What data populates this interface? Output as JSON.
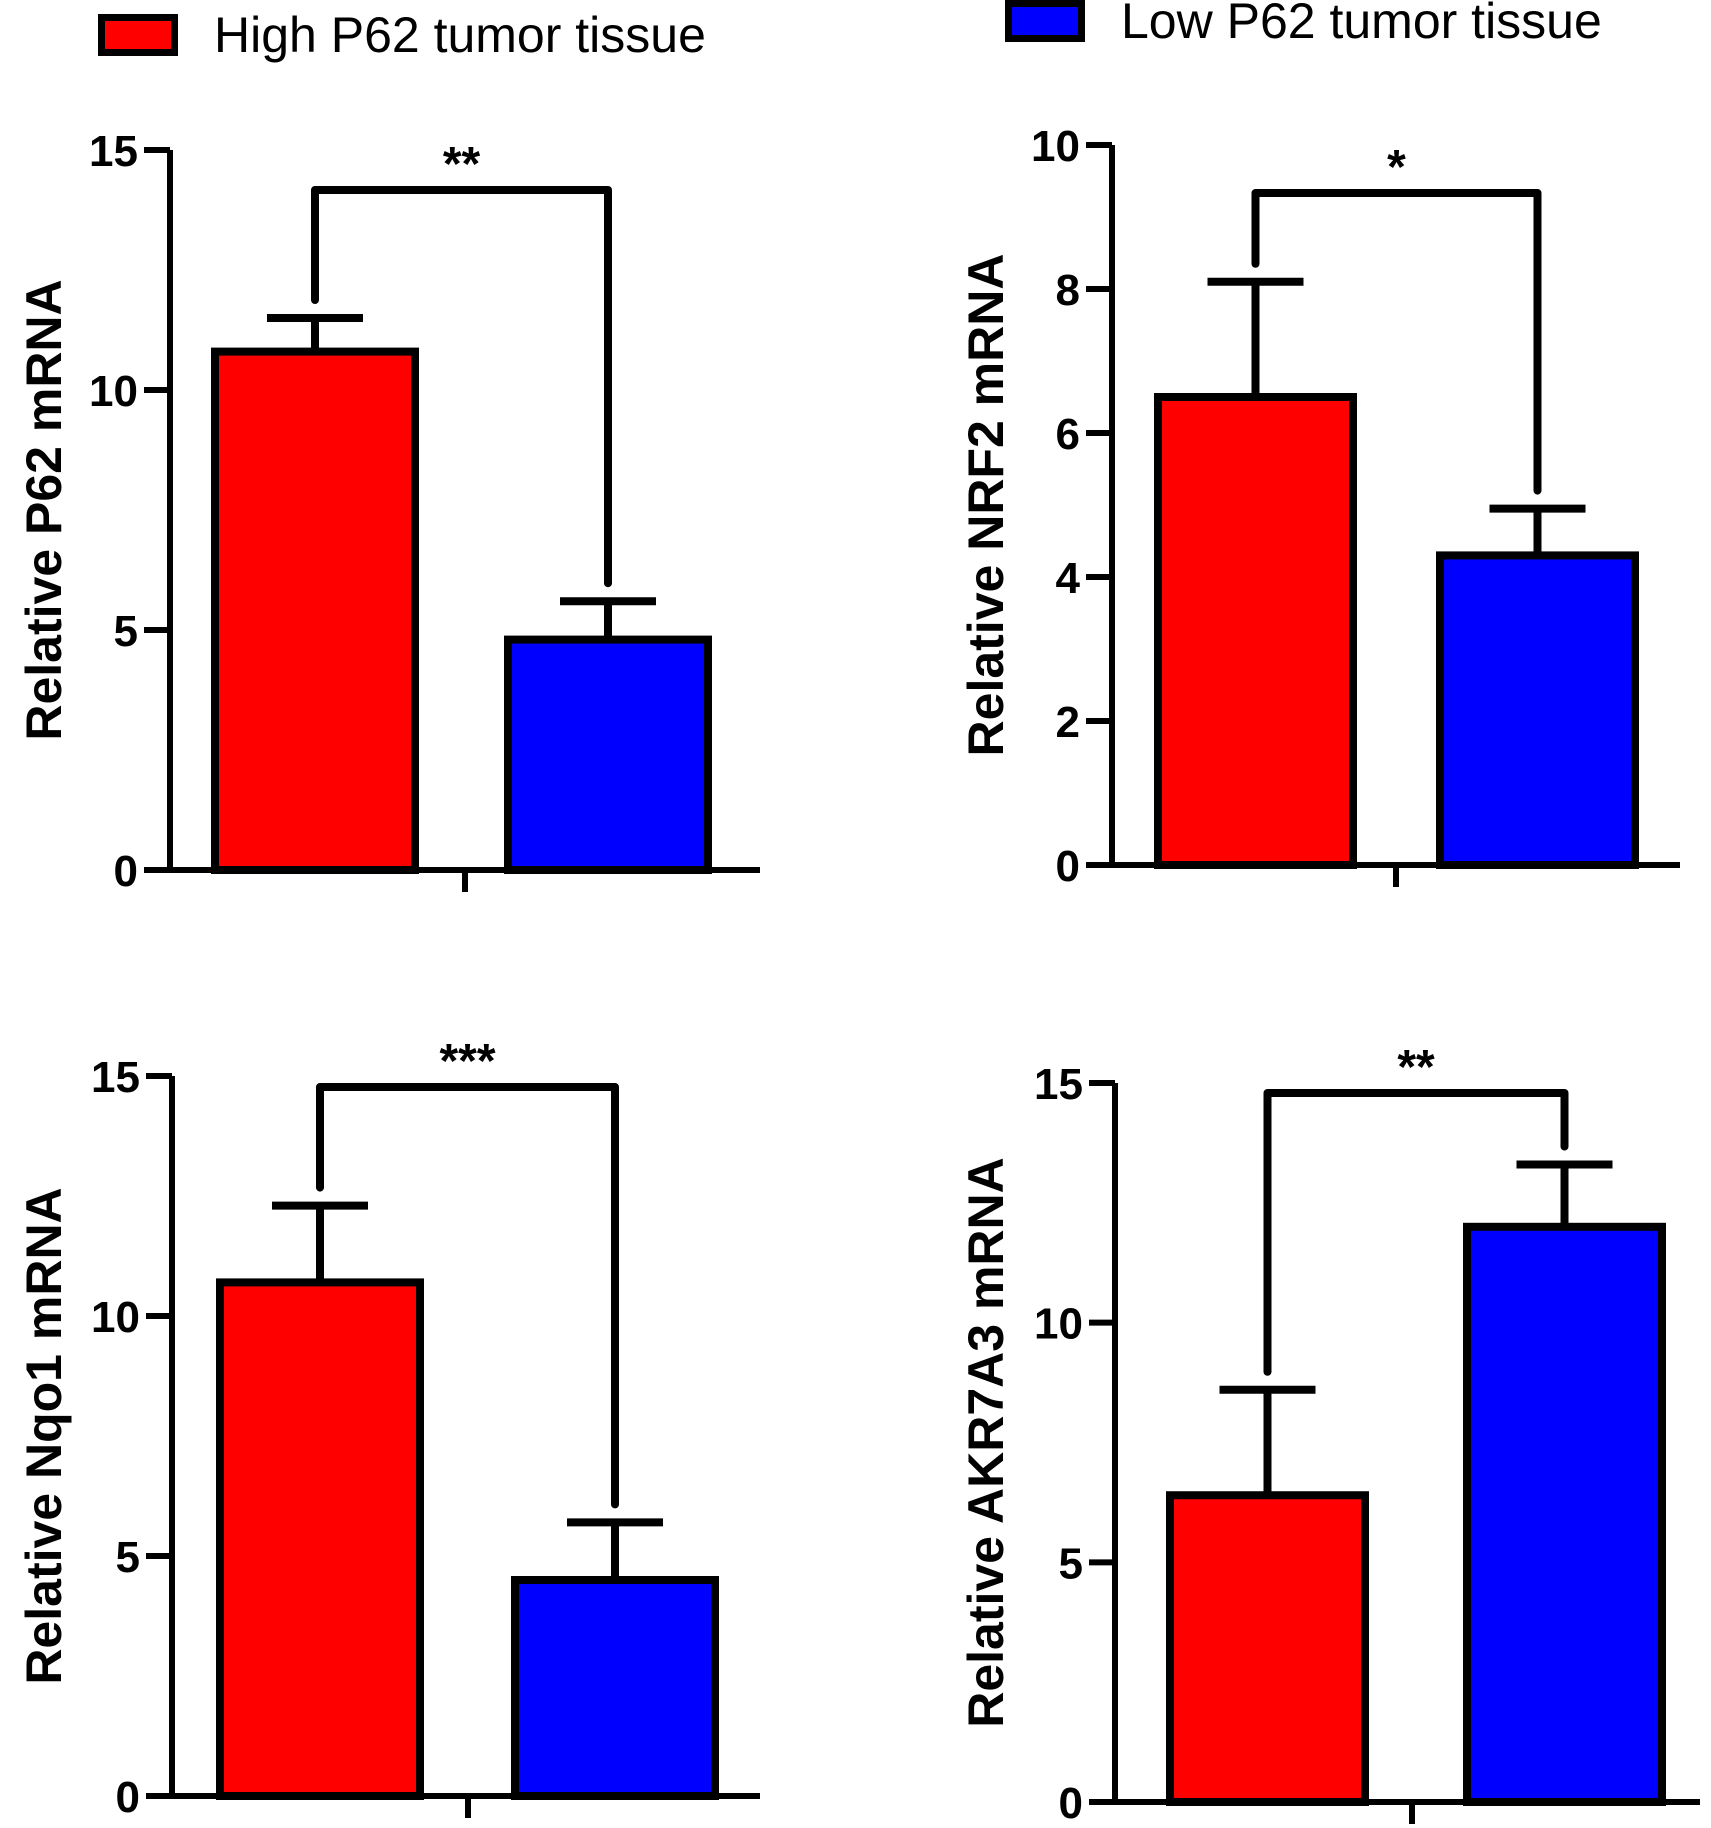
{
  "legend": [
    {
      "label": "High P62 tumor tissue",
      "color": "#ff0000"
    },
    {
      "label": "Low P62 tumor tissue",
      "color": "#0000ff"
    }
  ],
  "chart_data": [
    {
      "type": "bar",
      "categories": [
        "High P62 tumor tissue",
        "Low P62 tumor tissue"
      ],
      "values": [
        10.8,
        4.8
      ],
      "error": [
        0.7,
        0.8
      ],
      "colors": [
        "#ff0000",
        "#0000ff"
      ],
      "ylabel": "Relative P62 mRNA",
      "ylim": [
        0,
        15
      ],
      "yticks": [
        "0",
        "5",
        "10",
        "15"
      ],
      "significance": "**"
    },
    {
      "type": "bar",
      "categories": [
        "High P62 tumor tissue",
        "Low P62 tumor tissue"
      ],
      "values": [
        6.5,
        4.3
      ],
      "error": [
        1.6,
        0.65
      ],
      "colors": [
        "#ff0000",
        "#0000ff"
      ],
      "ylabel": "Relative NRF2 mRNA",
      "ylim": [
        0,
        10
      ],
      "yticks": [
        "0",
        "2",
        "4",
        "6",
        "8",
        "10"
      ],
      "significance": "*"
    },
    {
      "type": "bar",
      "categories": [
        "High P62 tumor tissue",
        "Low P62 tumor tissue"
      ],
      "values": [
        10.7,
        4.5
      ],
      "error": [
        1.6,
        1.2
      ],
      "colors": [
        "#ff0000",
        "#0000ff"
      ],
      "ylabel": "Relative Nqo1 mRNA",
      "ylim": [
        0,
        15
      ],
      "yticks": [
        "0",
        "5",
        "10",
        "15"
      ],
      "significance": "***"
    },
    {
      "type": "bar",
      "categories": [
        "High P62 tumor tissue",
        "Low P62 tumor tissue"
      ],
      "values": [
        6.4,
        12.0
      ],
      "error": [
        2.2,
        1.3
      ],
      "colors": [
        "#ff0000",
        "#0000ff"
      ],
      "ylabel": "Relative AKR7A3 mRNA",
      "ylim": [
        0,
        15
      ],
      "yticks": [
        "0",
        "5",
        "10",
        "15"
      ],
      "significance": "**"
    }
  ]
}
